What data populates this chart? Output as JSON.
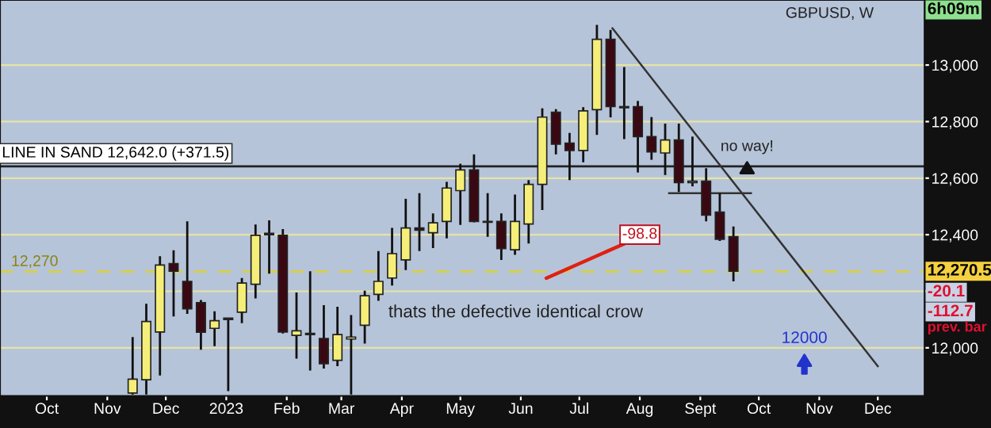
{
  "chart_data": {
    "type": "candlestick",
    "title": "GBPUSD, W",
    "x": [
      "2022-11-14",
      "2022-11-21",
      "2022-11-28",
      "2022-12-05",
      "2022-12-12",
      "2022-12-19",
      "2022-12-26",
      "2023-01-02",
      "2023-01-09",
      "2023-01-16",
      "2023-01-23",
      "2023-01-30",
      "2023-02-06",
      "2023-02-13",
      "2023-02-20",
      "2023-02-27",
      "2023-03-06",
      "2023-03-13",
      "2023-03-20",
      "2023-03-27",
      "2023-04-03",
      "2023-04-10",
      "2023-04-17",
      "2023-04-24",
      "2023-05-01",
      "2023-05-08",
      "2023-05-15",
      "2023-05-22",
      "2023-05-29",
      "2023-06-05",
      "2023-06-12",
      "2023-06-19",
      "2023-06-26",
      "2023-07-03",
      "2023-07-10",
      "2023-07-17",
      "2023-07-24",
      "2023-07-31",
      "2023-08-07",
      "2023-08-14",
      "2023-08-21",
      "2023-08-28",
      "2023-09-04",
      "2023-09-11",
      "2023-09-18"
    ],
    "ohlc": [
      [
        11840,
        12038,
        11835,
        11889
      ],
      [
        11887,
        12156,
        11835,
        12093
      ],
      [
        12056,
        12324,
        11902,
        12293
      ],
      [
        12298,
        12345,
        12111,
        12271
      ],
      [
        12235,
        12447,
        12120,
        12138
      ],
      [
        12160,
        12169,
        11993,
        12055
      ],
      [
        12069,
        12129,
        12006,
        12096
      ],
      [
        12105,
        12106,
        11847,
        12100
      ],
      [
        12126,
        12247,
        12087,
        12229
      ],
      [
        12225,
        12436,
        12175,
        12398
      ],
      [
        12405,
        12451,
        12262,
        12400
      ],
      [
        12398,
        12420,
        12051,
        12056
      ],
      [
        12044,
        12196,
        11962,
        12060
      ],
      [
        12051,
        12271,
        11920,
        12047
      ],
      [
        12033,
        12151,
        11927,
        11944
      ],
      [
        11956,
        12145,
        11935,
        12047
      ],
      [
        12031,
        12116,
        11835,
        12038
      ],
      [
        12080,
        12202,
        12015,
        12184
      ],
      [
        12189,
        12342,
        12166,
        12235
      ],
      [
        12247,
        12424,
        12220,
        12333
      ],
      [
        12311,
        12527,
        12275,
        12424
      ],
      [
        12424,
        12547,
        12342,
        12416
      ],
      [
        12407,
        12475,
        12353,
        12442
      ],
      [
        12447,
        12587,
        12387,
        12565
      ],
      [
        12556,
        12651,
        12435,
        12629
      ],
      [
        12629,
        12684,
        12444,
        12447
      ],
      [
        12447,
        12547,
        12393,
        12444
      ],
      [
        12447,
        12475,
        12311,
        12351
      ],
      [
        12347,
        12542,
        12329,
        12447
      ],
      [
        12438,
        12593,
        12369,
        12578
      ],
      [
        12578,
        12847,
        12487,
        12816
      ],
      [
        12833,
        12844,
        12684,
        12720
      ],
      [
        12724,
        12760,
        12593,
        12698
      ],
      [
        12698,
        12851,
        12656,
        12838
      ],
      [
        12842,
        13142,
        12753,
        13091
      ],
      [
        13091,
        13124,
        12815,
        12853
      ],
      [
        12853,
        12993,
        12738,
        12849
      ],
      [
        12853,
        12873,
        12620,
        12747
      ],
      [
        12747,
        12816,
        12665,
        12693
      ],
      [
        12689,
        12793,
        12611,
        12735
      ],
      [
        12735,
        12793,
        12551,
        12584
      ],
      [
        12584,
        12747,
        12571,
        12589
      ],
      [
        12589,
        12635,
        12447,
        12469
      ],
      [
        12480,
        12547,
        12378,
        12384
      ],
      [
        12393,
        12429,
        12235,
        12271
      ]
    ],
    "colors": [
      "#f5ee78",
      "#f5ee78",
      "#f5ee78",
      "#3a0812",
      "#3a0812",
      "#3a0812",
      "#f5ee78",
      "#3a0812",
      "#f5ee78",
      "#f5ee78",
      "#3a0812",
      "#3a0812",
      "#f5ee78",
      "#3a0812",
      "#3a0812",
      "#f5ee78",
      "#f5ee78",
      "#f5ee78",
      "#f5ee78",
      "#f5ee78",
      "#f5ee78",
      "#3a0812",
      "#f5ee78",
      "#f5ee78",
      "#f5ee78",
      "#3a0812",
      "#3a0812",
      "#3a0812",
      "#f5ee78",
      "#f5ee78",
      "#f5ee78",
      "#3a0812",
      "#3a0812",
      "#f5ee78",
      "#f5ee78",
      "#3a0812",
      "#3a0812",
      "#3a0812",
      "#3a0812",
      "#f5ee78",
      "#3a0812",
      "#f5ee78",
      "#3a0812",
      "#3a0812",
      "#3a0812"
    ],
    "series": [
      {
        "type": "line",
        "color": "#333333",
        "x": [
          "2023-07-18",
          "2023-12-01"
        ],
        "values": [
          13130,
          11935
        ]
      },
      {
        "type": "line",
        "color": "#333333",
        "x": [
          "2023-08-16",
          "2023-09-27"
        ],
        "values": [
          12547,
          12547
        ]
      }
    ],
    "ref_lines": [
      {
        "axis": "y",
        "value": 12642,
        "label": "LINE IN SAND 12,642.0 (+371.5)",
        "color": "#222222",
        "line_style": "solid"
      },
      {
        "axis": "y",
        "value": 12270,
        "label": "12,270",
        "color": "#d8d040",
        "line_style": "dashed"
      }
    ],
    "annotations": [
      {
        "text": "no way!",
        "x": "2023-09-25",
        "y": 12660
      },
      {
        "text": "-98.8",
        "x": "2023-08-01",
        "y": 12400
      },
      "thats the defective identical crow",
      "12000",
      "6h09m",
      "12,270.5",
      "-20.1",
      "-112.7",
      "prev. bar"
    ],
    "ylim": [
      11830,
      13230
    ],
    "yticks": [
      {
        "value": 12000,
        "label": "12,000"
      },
      {
        "value": 12200,
        "label": null
      },
      {
        "value": 12400,
        "label": "12,400"
      },
      {
        "value": 12600,
        "label": "12,600"
      },
      {
        "value": 12800,
        "label": "12,800"
      },
      {
        "value": 13000,
        "label": "13,000"
      }
    ],
    "xlim": [
      "2022-09-07",
      "2023-12-25"
    ],
    "xticks": [
      {
        "value": "2022-10-01",
        "label": "Oct"
      },
      {
        "value": "2022-11-01",
        "label": "Nov"
      },
      {
        "value": "2022-12-01",
        "label": "Dec"
      },
      {
        "value": "2023-01-01",
        "label": "2023"
      },
      {
        "value": "2023-02-01",
        "label": "Feb"
      },
      {
        "value": "2023-03-01",
        "label": "Mar"
      },
      {
        "value": "2023-04-01",
        "label": "Apr"
      },
      {
        "value": "2023-05-01",
        "label": "May"
      },
      {
        "value": "2023-06-01",
        "label": "Jun"
      },
      {
        "value": "2023-07-01",
        "label": "Jul"
      },
      {
        "value": "2023-08-01",
        "label": "Aug"
      },
      {
        "value": "2023-09-01",
        "label": "Sept"
      },
      {
        "value": "2023-10-01",
        "label": "Oct"
      },
      {
        "value": "2023-11-01",
        "label": "Nov"
      },
      {
        "value": "2023-12-01",
        "label": "Dec"
      }
    ],
    "grid": "y"
  }
}
